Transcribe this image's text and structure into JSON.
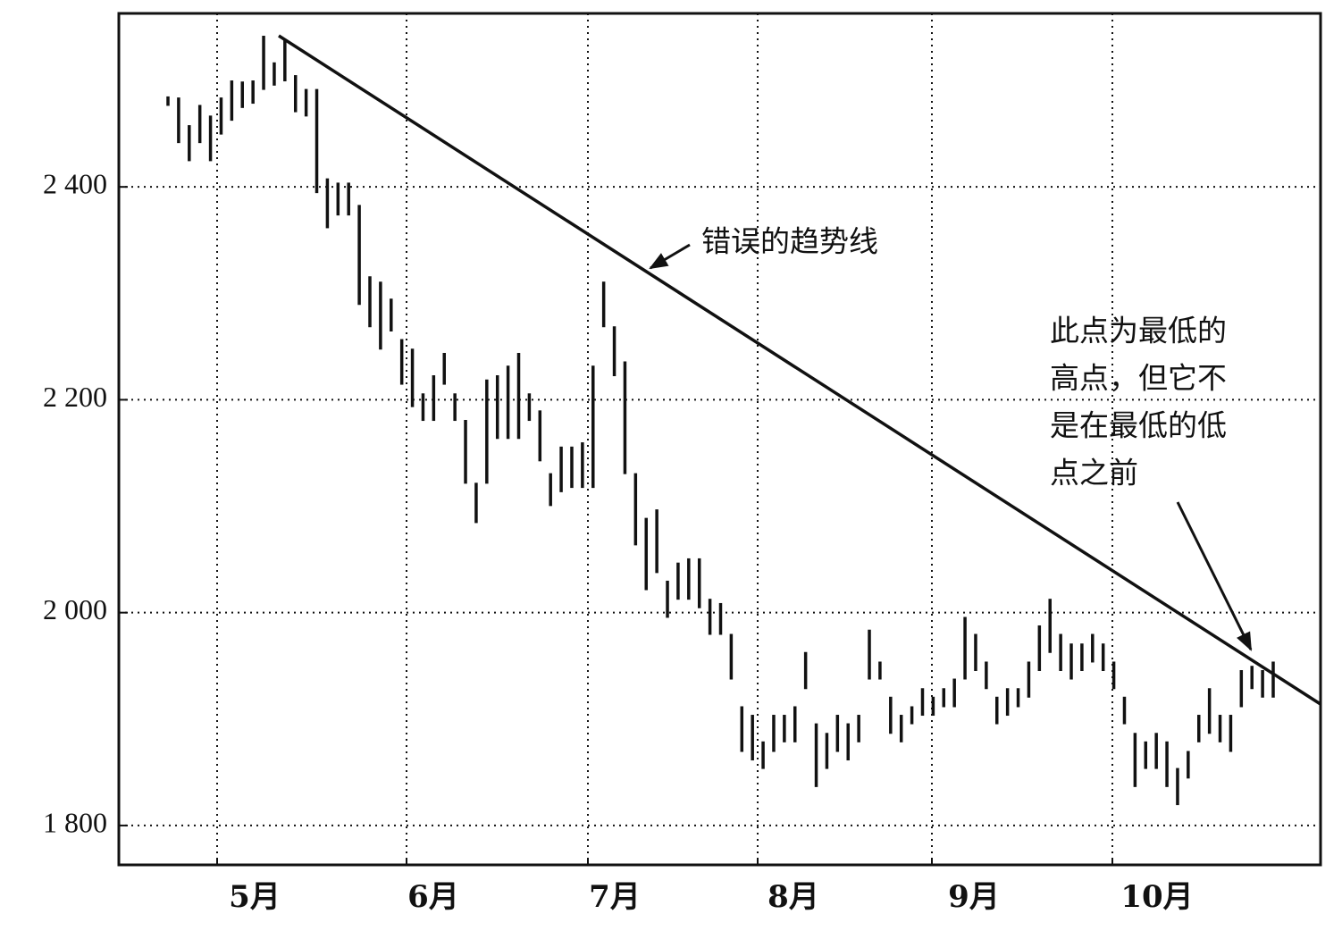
{
  "chart_data": {
    "type": "range_bar",
    "months": [
      "5月",
      "6月",
      "7月",
      "8月",
      "9月",
      "10月"
    ],
    "highs": [
      2485,
      2484,
      2458,
      2477,
      2467,
      2484,
      2500,
      2499,
      2500,
      2542,
      2517,
      2538,
      2505,
      2492,
      2492,
      2408,
      2404,
      2404,
      2383,
      2316,
      2311,
      2295,
      2257,
      2248,
      2206,
      2223,
      2244,
      2206,
      2181,
      2122,
      2219,
      2223,
      2232,
      2244,
      2206,
      2190,
      2131,
      2156,
      2156,
      2160,
      2232,
      2311,
      2269,
      2236,
      2131,
      2089,
      2097,
      2030,
      2047,
      2051,
      2051,
      2013,
      2009,
      1980,
      1912,
      1904,
      1879,
      1904,
      1904,
      1912,
      1963,
      1896,
      1887,
      1904,
      1896,
      1904,
      1984,
      1954,
      1921,
      1904,
      1912,
      1929,
      1921,
      1929,
      1938,
      1996,
      1980,
      1954,
      1921,
      1929,
      1929,
      1954,
      1988,
      2013,
      1980,
      1971,
      1971,
      1980,
      1971,
      1954,
      1921,
      1887,
      1879,
      1887,
      1879,
      1854,
      1870,
      1904,
      1929,
      1904,
      1904,
      1946,
      1950,
      1946,
      1954
    ],
    "lows": [
      2477,
      2442,
      2425,
      2442,
      2425,
      2450,
      2463,
      2475,
      2479,
      2492,
      2496,
      2500,
      2471,
      2467,
      2395,
      2362,
      2374,
      2374,
      2290,
      2269,
      2248,
      2265,
      2215,
      2194,
      2181,
      2181,
      2215,
      2181,
      2122,
      2085,
      2122,
      2164,
      2164,
      2164,
      2181,
      2143,
      2101,
      2114,
      2118,
      2118,
      2118,
      2269,
      2223,
      2131,
      2064,
      2022,
      2038,
      1996,
      2013,
      2013,
      2005,
      1980,
      1980,
      1938,
      1870,
      1862,
      1854,
      1870,
      1879,
      1879,
      1929,
      1837,
      1854,
      1870,
      1862,
      1879,
      1938,
      1938,
      1887,
      1879,
      1896,
      1904,
      1904,
      1912,
      1912,
      1938,
      1946,
      1929,
      1896,
      1904,
      1912,
      1921,
      1946,
      1963,
      1946,
      1938,
      1946,
      1954,
      1946,
      1929,
      1896,
      1837,
      1854,
      1854,
      1837,
      1820,
      1845,
      1879,
      1887,
      1879,
      1870,
      1912,
      1929,
      1921,
      1921
    ],
    "color": "#111111",
    "trend_line": [
      2542,
      1914
    ],
    "ylim": [
      1763,
      2563
    ],
    "yticks": [
      {
        "value": 1800,
        "label": "1 800"
      },
      {
        "value": 2000,
        "label": "2 000"
      },
      {
        "value": 2200,
        "label": "2 200"
      },
      {
        "value": 2400,
        "label": "2 400"
      }
    ],
    "grid": true,
    "annotations": [
      {
        "lines": [
          "错误的趋势线"
        ]
      },
      {
        "lines": [
          "此点为最低的",
          "高点，但它不",
          "是在最低的低",
          "点之前"
        ]
      }
    ]
  }
}
